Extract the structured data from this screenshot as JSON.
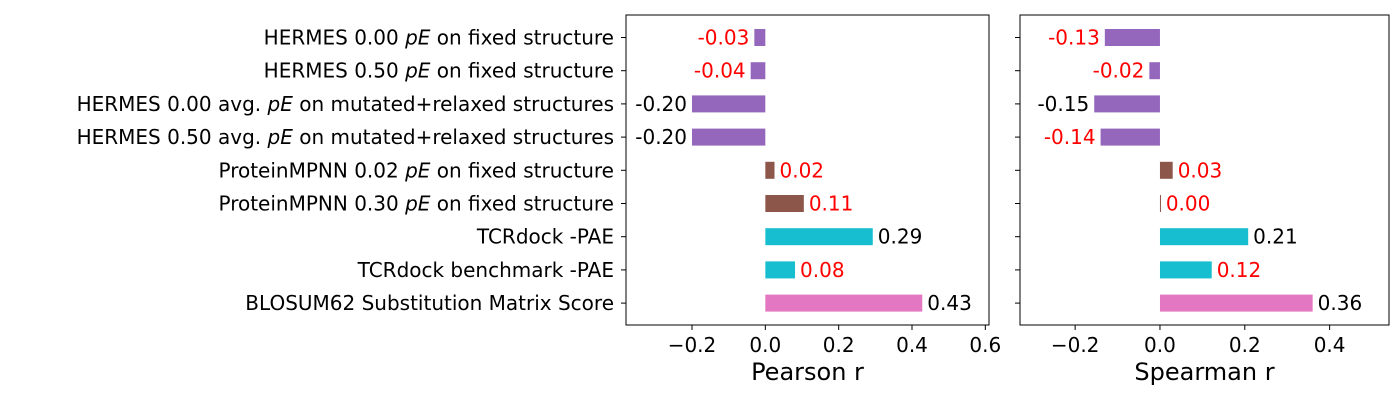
{
  "chart_data": {
    "type": "bar",
    "orientation": "horizontal",
    "categories": [
      [
        "HERMES 0.00 ",
        "pE",
        " on fixed structure"
      ],
      [
        "HERMES 0.50 ",
        "pE",
        " on fixed structure"
      ],
      [
        "HERMES 0.00 avg. ",
        "pE",
        " on mutated+relaxed structures"
      ],
      [
        "HERMES 0.50 avg. ",
        "pE",
        " on mutated+relaxed structures"
      ],
      [
        "ProteinMPNN 0.02 ",
        "pE",
        " on fixed structure"
      ],
      [
        "ProteinMPNN 0.30 ",
        "pE",
        " on fixed structure"
      ],
      [
        "TCRdock -PAE",
        "",
        ""
      ],
      [
        "TCRdock benchmark -PAE",
        "",
        ""
      ],
      [
        "BLOSUM62 Substitution Matrix Score",
        "",
        ""
      ]
    ],
    "bar_colors": [
      "#9467bd",
      "#9467bd",
      "#9467bd",
      "#9467bd",
      "#8c564b",
      "#8c564b",
      "#17becf",
      "#17becf",
      "#e377c2"
    ],
    "label_colors": {
      "significant": "#000000",
      "not_significant": "#ff0000"
    },
    "panels": [
      {
        "xlabel": "Pearson r",
        "xlim": [
          -0.38,
          0.61
        ],
        "ticks": [
          -0.2,
          0.0,
          0.2,
          0.4,
          0.6
        ],
        "tick_labels": [
          "−0.2",
          "0.0",
          "0.2",
          "0.4",
          "0.6"
        ],
        "values": [
          -0.03,
          -0.04,
          -0.2,
          -0.2,
          0.025,
          0.105,
          0.293,
          0.081,
          0.428
        ],
        "value_labels": [
          "-0.03",
          "-0.04",
          "-0.20",
          "-0.20",
          "0.02",
          "0.11",
          "0.29",
          "0.08",
          "0.43"
        ],
        "significant": [
          false,
          false,
          true,
          true,
          false,
          false,
          true,
          false,
          true
        ]
      },
      {
        "xlabel": "Spearman r",
        "xlim": [
          -0.33,
          0.54
        ],
        "ticks": [
          -0.2,
          0.0,
          0.2,
          0.4
        ],
        "tick_labels": [
          "−0.2",
          "0.0",
          "0.2",
          "0.4"
        ],
        "values": [
          -0.13,
          -0.025,
          -0.155,
          -0.14,
          0.03,
          0.002,
          0.208,
          0.122,
          0.36
        ],
        "value_labels": [
          "-0.13",
          "-0.02",
          "-0.15",
          "-0.14",
          "0.03",
          "0.00",
          "0.21",
          "0.12",
          "0.36"
        ],
        "significant": [
          false,
          false,
          true,
          false,
          false,
          false,
          true,
          false,
          true
        ]
      }
    ]
  }
}
